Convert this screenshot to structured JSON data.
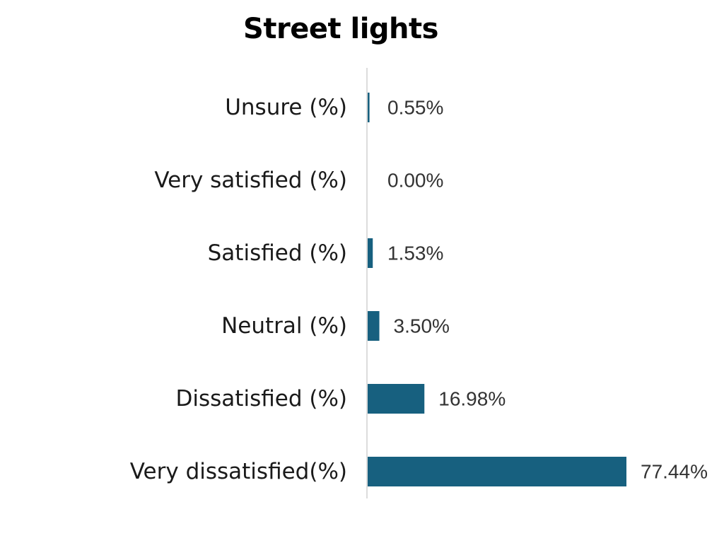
{
  "chart_data": {
    "type": "bar",
    "orientation": "horizontal",
    "title": "Street lights",
    "categories": [
      "Unsure (%)",
      "Very satisfied (%)",
      "Satisfied (%)",
      "Neutral (%)",
      "Dissatisfied (%)",
      "Very dissatisfied(%)"
    ],
    "values": [
      0.55,
      0.0,
      1.53,
      3.5,
      16.98,
      77.44
    ],
    "value_labels": [
      "0.55%",
      "0.00%",
      "1.53%",
      "3.50%",
      "16.98%",
      "77.44%"
    ],
    "xlim": [
      0,
      77.44
    ],
    "grid": false,
    "legend": "none",
    "bar_color": "#17607f",
    "axis_color": "#d0d0d0"
  }
}
